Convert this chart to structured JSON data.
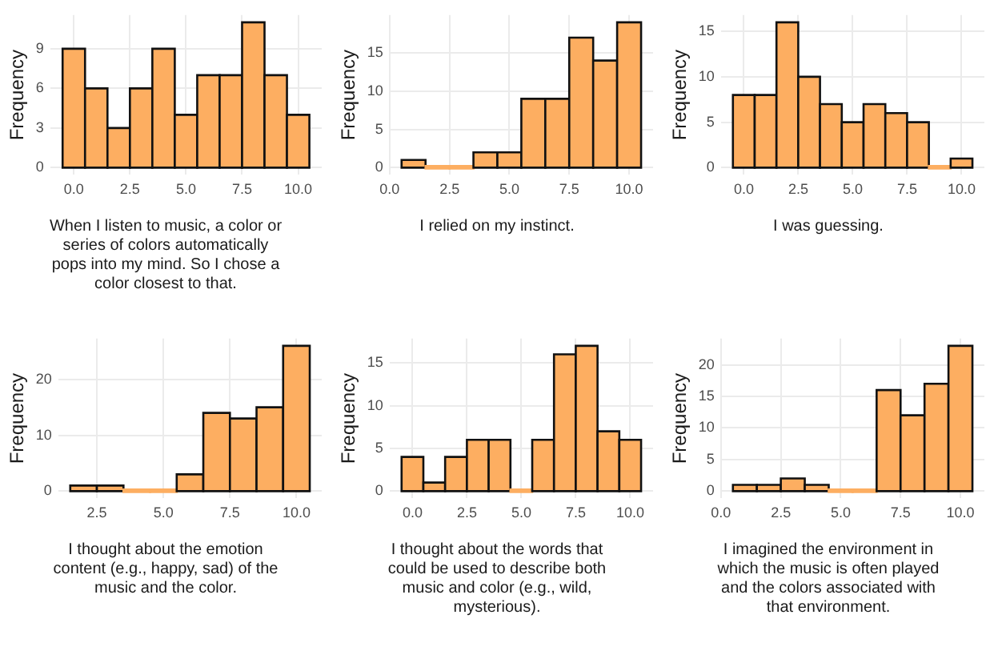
{
  "chart_data": [
    {
      "type": "histogram",
      "xlabel": "When I listen to music, a color or series of colors automatically pops into my mind. So I chose a color closest to that.",
      "ylabel": "Frequency",
      "bins": [
        -0.5,
        0.5,
        1.5,
        2.5,
        3.5,
        4.5,
        5.5,
        6.5,
        7.5,
        8.5,
        9.5,
        10.5
      ],
      "values": [
        9,
        6,
        3,
        6,
        9,
        4,
        7,
        7,
        11,
        7,
        4
      ],
      "color": "#fdae61",
      "xlim": [
        -1.05,
        11.05
      ],
      "ylim": [
        -0.55,
        11.55
      ],
      "xticks": [
        {
          "value": 0,
          "label": "0.0"
        },
        {
          "value": 2.5,
          "label": "2.5"
        },
        {
          "value": 5,
          "label": "5.0"
        },
        {
          "value": 7.5,
          "label": "7.5"
        },
        {
          "value": 10,
          "label": "10.0"
        }
      ],
      "yticks": [
        0,
        3,
        6,
        9
      ],
      "grid": true
    },
    {
      "type": "histogram",
      "xlabel": "I relied on my instinct.",
      "ylabel": "Frequency",
      "bins": [
        0.5,
        1.5,
        2.5,
        3.5,
        4.5,
        5.5,
        6.5,
        7.5,
        8.5,
        9.5,
        10.5
      ],
      "values": [
        1,
        0,
        0,
        2,
        2,
        9,
        9,
        17,
        14,
        19
      ],
      "color": "#fdae61",
      "xlim": [
        0,
        11
      ],
      "ylim": [
        -0.95,
        19.95
      ],
      "xticks": [
        {
          "value": 0,
          "label": "0.0"
        },
        {
          "value": 2.5,
          "label": "2.5"
        },
        {
          "value": 5,
          "label": "5.0"
        },
        {
          "value": 7.5,
          "label": "7.5"
        },
        {
          "value": 10,
          "label": "10.0"
        }
      ],
      "yticks": [
        0,
        5,
        10,
        15
      ],
      "grid": true
    },
    {
      "type": "histogram",
      "xlabel": "I was guessing.",
      "ylabel": "Frequency",
      "bins": [
        -0.5,
        0.5,
        1.5,
        2.5,
        3.5,
        4.5,
        5.5,
        6.5,
        7.5,
        8.5,
        9.5,
        10.5
      ],
      "values": [
        8,
        8,
        16,
        10,
        7,
        5,
        7,
        6,
        5,
        0,
        1
      ],
      "color": "#fdae61",
      "xlim": [
        -1.05,
        11.05
      ],
      "ylim": [
        -0.8,
        16.8
      ],
      "xticks": [
        {
          "value": 0,
          "label": "0.0"
        },
        {
          "value": 2.5,
          "label": "2.5"
        },
        {
          "value": 5,
          "label": "5.0"
        },
        {
          "value": 7.5,
          "label": "7.5"
        },
        {
          "value": 10,
          "label": "10.0"
        }
      ],
      "yticks": [
        0,
        5,
        10,
        15
      ],
      "grid": true
    },
    {
      "type": "histogram",
      "xlabel": "I thought about the emotion content (e.g., happy, sad) of the music and the color.",
      "ylabel": "Frequency",
      "bins": [
        1.5,
        2.5,
        3.5,
        4.5,
        5.5,
        6.5,
        7.5,
        8.5,
        9.5,
        10.5
      ],
      "values": [
        1,
        1,
        0,
        0,
        3,
        14,
        13,
        15,
        26
      ],
      "color": "#fdae61",
      "xlim": [
        1.05,
        10.95
      ],
      "ylim": [
        -1.3,
        27.3
      ],
      "xticks": [
        {
          "value": 2.5,
          "label": "2.5"
        },
        {
          "value": 5,
          "label": "5.0"
        },
        {
          "value": 7.5,
          "label": "7.5"
        },
        {
          "value": 10,
          "label": "10.0"
        }
      ],
      "yticks": [
        0,
        10,
        20
      ],
      "grid": true
    },
    {
      "type": "histogram",
      "xlabel": "I thought about the words that could be used to describe both music and color (e.g., wild, mysterious).",
      "ylabel": "Frequency",
      "bins": [
        -0.5,
        0.5,
        1.5,
        2.5,
        3.5,
        4.5,
        5.5,
        6.5,
        7.5,
        8.5,
        9.5,
        10.5
      ],
      "values": [
        4,
        1,
        4,
        6,
        6,
        0,
        6,
        16,
        17,
        7,
        6
      ],
      "color": "#fdae61",
      "xlim": [
        -1.05,
        11.05
      ],
      "ylim": [
        -0.85,
        17.85
      ],
      "xticks": [
        {
          "value": 0,
          "label": "0.0"
        },
        {
          "value": 2.5,
          "label": "2.5"
        },
        {
          "value": 5,
          "label": "5.0"
        },
        {
          "value": 7.5,
          "label": "7.5"
        },
        {
          "value": 10,
          "label": "10.0"
        }
      ],
      "yticks": [
        0,
        5,
        10,
        15
      ],
      "grid": true
    },
    {
      "type": "histogram",
      "xlabel": "I imagined the environment in which the music is often played and the colors associated with that environment.",
      "ylabel": "Frequency",
      "bins": [
        0.5,
        1.5,
        2.5,
        3.5,
        4.5,
        5.5,
        6.5,
        7.5,
        8.5,
        9.5,
        10.5
      ],
      "values": [
        1,
        1,
        2,
        1,
        0,
        0,
        16,
        12,
        17,
        23
      ],
      "color": "#fdae61",
      "xlim": [
        0,
        11
      ],
      "ylim": [
        -1.15,
        24.15
      ],
      "xticks": [
        {
          "value": 0,
          "label": "0.0"
        },
        {
          "value": 2.5,
          "label": "2.5"
        },
        {
          "value": 5,
          "label": "5.0"
        },
        {
          "value": 7.5,
          "label": "7.5"
        },
        {
          "value": 10,
          "label": "10.0"
        }
      ],
      "yticks": [
        0,
        5,
        10,
        15,
        20
      ],
      "grid": true
    }
  ]
}
